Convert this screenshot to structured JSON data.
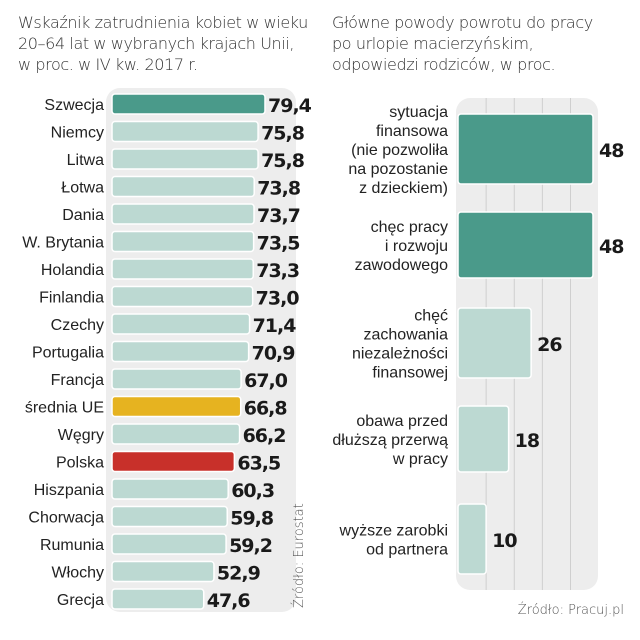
{
  "chart_data": [
    {
      "type": "bar",
      "orientation": "horizontal",
      "title": "Wskaźnik zatrudnienia kobiet w wieku\n20–64 lat w wybranych krajach Unii,\nw proc. w IV kw. 2017 r.",
      "categories": [
        "Szwecja",
        "Niemcy",
        "Litwa",
        "Łotwa",
        "Dania",
        "W. Brytania",
        "Holandia",
        "Finlandia",
        "Czechy",
        "Portugalia",
        "Francja",
        "średnia UE",
        "Węgry",
        "Polska",
        "Hiszpania",
        "Chorwacja",
        "Rumunia",
        "Włochy",
        "Grecja"
      ],
      "values": [
        79.4,
        75.8,
        75.8,
        73.8,
        73.7,
        73.5,
        73.3,
        73.0,
        71.4,
        70.9,
        67.0,
        66.8,
        66.2,
        63.5,
        60.3,
        59.8,
        59.2,
        52.9,
        47.6
      ],
      "value_labels": [
        "79,4",
        "75,8",
        "75,8",
        "73,8",
        "73,7",
        "73,5",
        "73,3",
        "73,0",
        "71,4",
        "70,9",
        "67,0",
        "66,8",
        "66,2",
        "63,5",
        "60,3",
        "59,8",
        "59,2",
        "52,9",
        "47,6"
      ],
      "highlight": {
        "Szwecja": "#4a9a8a",
        "średnia UE": "#e6b320",
        "Polska": "#c8302a"
      },
      "default_color": "#bcd9d2",
      "xlim": [
        0,
        80
      ],
      "source": "Źródło: Eurostat"
    },
    {
      "type": "bar",
      "orientation": "horizontal",
      "title": "Główne powody powrotu do pracy\npo urlopie macierzyńskim,\nodpowiedzi rodziców, w proc.",
      "categories": [
        "sytuacja\nfinansowa\n(nie pozwoliła\nna pozostanie\nz dzieckiem)",
        "chęc pracy\ni rozwoju\nzawodowego",
        "chęć\nzachowania\nniezależności\nfinansowej",
        "obawa przed\ndłuższą przerwą\nw pracy",
        "wyższe zarobki\nod partnera"
      ],
      "values": [
        48,
        48,
        26,
        18,
        10
      ],
      "value_labels": [
        "48",
        "48",
        "26",
        "18",
        "10"
      ],
      "colors": [
        "#4a9a8a",
        "#4a9a8a",
        "#bcd9d2",
        "#bcd9d2",
        "#bcd9d2"
      ],
      "xlim": [
        0,
        50
      ],
      "gridlines": [
        10,
        20,
        30,
        40
      ],
      "grid": true,
      "source": "Źródło: Pracuj.pl"
    }
  ]
}
